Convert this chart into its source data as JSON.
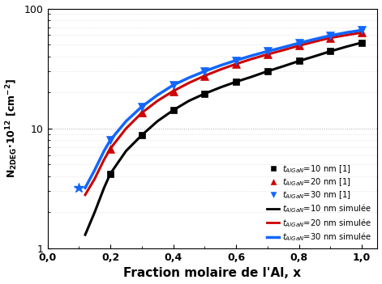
{
  "xlabel": "Fraction molaire de l'Al, x",
  "xlim": [
    0.0,
    1.05
  ],
  "ylim": [
    1,
    100
  ],
  "background_color": "#ffffff",
  "sim_x": [
    0.12,
    0.15,
    0.18,
    0.2,
    0.25,
    0.3,
    0.35,
    0.4,
    0.45,
    0.5,
    0.55,
    0.6,
    0.65,
    0.7,
    0.75,
    0.8,
    0.85,
    0.9,
    0.95,
    1.0
  ],
  "sim_10nm_y": [
    1.3,
    2.0,
    3.2,
    4.2,
    6.5,
    8.8,
    11.5,
    14.2,
    17.0,
    19.5,
    22.0,
    24.5,
    27.0,
    30.0,
    33.0,
    36.5,
    40.0,
    44.0,
    48.0,
    52.0
  ],
  "sim_20nm_y": [
    2.8,
    3.8,
    5.5,
    6.8,
    10.0,
    13.5,
    17.0,
    20.5,
    24.0,
    27.5,
    31.0,
    34.5,
    38.0,
    41.5,
    45.0,
    49.0,
    53.0,
    57.0,
    60.0,
    63.0
  ],
  "sim_30nm_y": [
    3.2,
    4.5,
    6.5,
    8.0,
    11.5,
    15.2,
    19.0,
    23.0,
    26.5,
    30.0,
    33.5,
    37.0,
    40.5,
    44.0,
    47.5,
    51.5,
    55.5,
    59.5,
    63.0,
    66.0
  ],
  "ref_10nm_x": [
    0.2,
    0.3,
    0.4,
    0.5,
    0.6,
    0.7,
    0.8,
    0.9,
    1.0
  ],
  "ref_10nm_y": [
    4.2,
    8.8,
    14.2,
    19.5,
    24.5,
    30.0,
    36.5,
    44.0,
    52.0
  ],
  "ref_20nm_x": [
    0.2,
    0.3,
    0.4,
    0.5,
    0.6,
    0.7,
    0.8,
    0.9,
    1.0
  ],
  "ref_20nm_y": [
    6.8,
    13.5,
    20.5,
    27.5,
    34.5,
    41.5,
    49.0,
    57.0,
    63.0
  ],
  "ref_30nm_x": [
    0.2,
    0.3,
    0.4,
    0.5,
    0.6,
    0.7,
    0.8,
    0.9,
    1.0
  ],
  "ref_30nm_y": [
    8.0,
    15.2,
    23.0,
    30.0,
    37.0,
    44.0,
    51.5,
    59.5,
    66.0
  ],
  "star_x": [
    0.1
  ],
  "star_y": [
    3.2
  ],
  "color_10nm": "#000000",
  "color_20nm": "#cc0000",
  "color_30nm": "#1166ff",
  "color_star": "#1166ff",
  "x_ticks": [
    0.0,
    0.2,
    0.4,
    0.6,
    0.8,
    1.0
  ],
  "x_tick_labels": [
    "0,0",
    "0,2",
    "0,4",
    "0,6",
    "0,8",
    "1,0"
  ]
}
